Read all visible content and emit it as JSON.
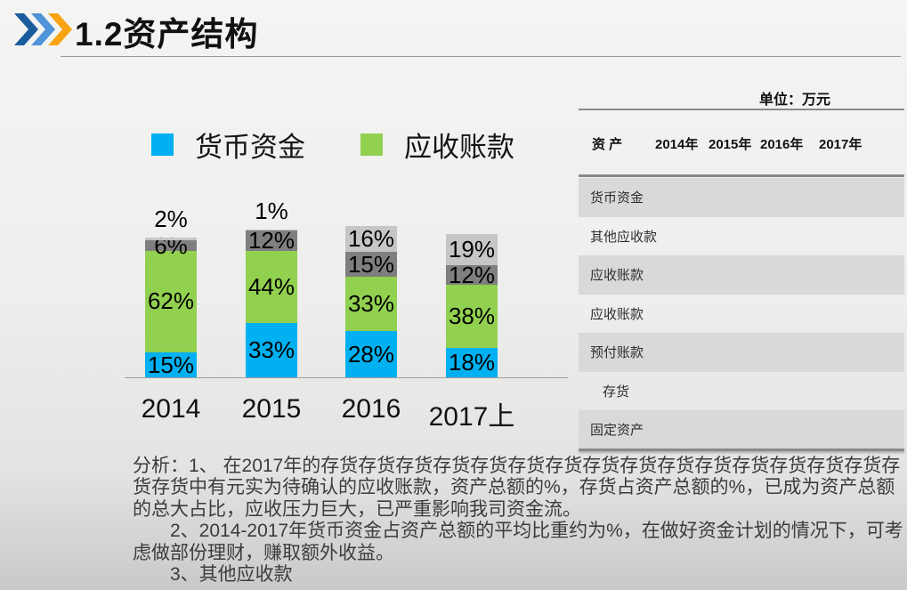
{
  "header": {
    "title": "1.2资产结构",
    "chevron_colors": [
      "#1b5c9e",
      "#4f93d8",
      "#f8a311"
    ]
  },
  "legend": [
    {
      "label": "货币资金",
      "color": "#00b0f0"
    },
    {
      "label": "应收账款",
      "color": "#92d050"
    }
  ],
  "chart_data": {
    "type": "bar",
    "stacked": true,
    "categories": [
      "2014",
      "2015",
      "2016",
      "2017上"
    ],
    "series": [
      {
        "name": "货币资金",
        "color": "#00b0f0",
        "values": [
          15,
          33,
          28,
          18
        ]
      },
      {
        "name": "应收账款",
        "color": "#92d050",
        "values": [
          62,
          44,
          33,
          38
        ]
      },
      {
        "name": "",
        "color": "#7f7f7f",
        "values": [
          6,
          12,
          15,
          12
        ]
      },
      {
        "name": "",
        "color": "#c6c6c6",
        "values": [
          2,
          1,
          16,
          19
        ]
      }
    ],
    "value_suffix": "%",
    "title": "",
    "xlabel": "",
    "ylabel": "",
    "grid": false,
    "legend_position": "top"
  },
  "table": {
    "unit": "单位：万元",
    "columns": [
      "资  产",
      "2014年",
      "2015年",
      "2016年",
      "2017年"
    ],
    "rows": [
      {
        "label": "货币资金",
        "shaded": true,
        "indent": false
      },
      {
        "label": "其他应收款",
        "shaded": false,
        "indent": false
      },
      {
        "label": "应收账款",
        "shaded": true,
        "indent": false
      },
      {
        "label": "应收账款",
        "shaded": false,
        "indent": false
      },
      {
        "label": "预付账款",
        "shaded": true,
        "indent": false
      },
      {
        "label": "存货",
        "shaded": false,
        "indent": true
      },
      {
        "label": "固定资产",
        "shaded": true,
        "indent": false
      }
    ],
    "shade_color": "#d9d9d8"
  },
  "analysis": {
    "p1": "分析：1、 在2017年的存货存货存货存货存货存货存货存货存货存货存货存货存货存货存货存货存货中有元实为待确认的应收账款，资产总额的%，存货占资产总额的%，已成为资产总额的总大占比，应收压力巨大，已严重影响我司资金流。",
    "p2": "2、2014-2017年货币资金占资产总额的平均比重约为%，在做好资金计划的情况下，可考虑做部份理财，赚取额外收益。",
    "p3": "3、其他应收款"
  }
}
